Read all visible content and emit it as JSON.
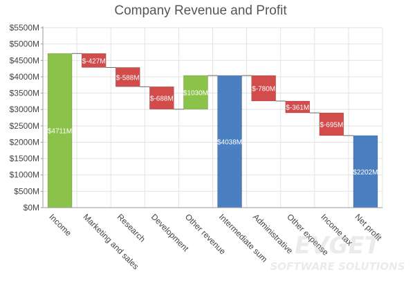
{
  "chart_data": {
    "type": "bar",
    "subtype": "waterfall",
    "title": "Company Revenue and Profit",
    "xlabel": "",
    "ylabel": "",
    "ylim": [
      0,
      5500
    ],
    "y_ticks": [
      "$0M",
      "$500M",
      "$1000M",
      "$1500M",
      "$2000M",
      "$2500M",
      "$3000M",
      "$3500M",
      "$4000M",
      "$4500M",
      "$5000M",
      "$5500M"
    ],
    "grid": true,
    "legend": "none",
    "categories": [
      "Income",
      "Marketing and sales",
      "Research",
      "Development",
      "Other revenue",
      "Intermediate sum",
      "Administrative",
      "Other expense",
      "Income tax",
      "Net profit"
    ],
    "values": [
      4711,
      -427,
      -588,
      -688,
      1030,
      4038,
      -780,
      -361,
      -695,
      2202
    ],
    "kinds": [
      "start",
      "delta",
      "delta",
      "delta",
      "delta",
      "total",
      "delta",
      "delta",
      "delta",
      "total"
    ],
    "data_labels": [
      "$4711M",
      "$-427M",
      "$-588M",
      "$-688M",
      "$1030M",
      "$4038M",
      "$-780M",
      "$-361M",
      "$-695M",
      "$2202M"
    ],
    "colors": {
      "start": "#8bc34a",
      "increase": "#8bc34a",
      "decrease": "#d24c4c",
      "total": "#4a7fc1",
      "gridline": "#e3e3e3",
      "axis": "#999999",
      "connector": "#666666"
    }
  },
  "watermark": {
    "brand": "EVGET",
    "tagline": "SOFTWARE SOLUTIONS"
  }
}
